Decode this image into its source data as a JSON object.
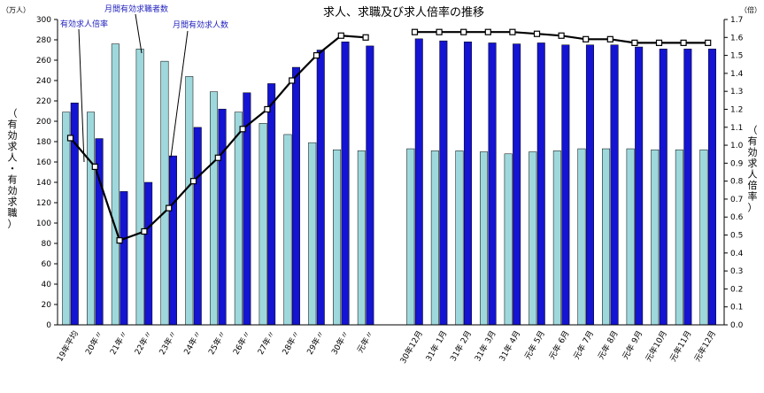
{
  "chart_data": {
    "type": "bar",
    "title": "求人、求職及び求人倍率の推移",
    "left_unit": "（万人）",
    "right_unit": "（倍）",
    "ylabel_left": "（有効求人・有効求職）",
    "ylabel_right": "（有効求人倍率）",
    "ylim_left": [
      0,
      300
    ],
    "ylim_right": [
      0.0,
      1.7
    ],
    "left_ticks": [
      "0",
      "20",
      "40",
      "60",
      "80",
      "100",
      "120",
      "140",
      "160",
      "180",
      "200",
      "220",
      "240",
      "260",
      "280",
      "300"
    ],
    "right_ticks": [
      "0.0",
      "0.1",
      "0.2",
      "0.3",
      "0.4",
      "0.5",
      "0.6",
      "0.7",
      "0.8",
      "0.9",
      "1.0",
      "1.1",
      "1.2",
      "1.3",
      "1.4",
      "1.5",
      "1.6",
      "1.7"
    ],
    "categories": [
      "19年平均",
      "20年〃",
      "21年〃",
      "22年〃",
      "23年〃",
      "24年〃",
      "25年〃",
      "26年〃",
      "27年〃",
      "28年〃",
      "29年〃",
      "30年〃",
      "元年〃",
      "30年12月",
      "31年 1月",
      "31年 2月",
      "31年 3月",
      "31年 4月",
      "元年 5月",
      "元年 6月",
      "元年 7月",
      "元年 8月",
      "元年 9月",
      "元年10月",
      "元年11月",
      "元年12月"
    ],
    "series": [
      {
        "name": "月間有効求職者数",
        "axis": "left",
        "color": "#9ed8dc",
        "values": [
          209,
          209,
          276,
          271,
          259,
          244,
          229,
          209,
          198,
          187,
          179,
          172,
          171,
          173,
          171,
          171,
          170,
          168,
          170,
          171,
          173,
          173,
          173,
          172,
          172,
          172
        ]
      },
      {
        "name": "月間有効求人数",
        "axis": "left",
        "color": "#1414d2",
        "values": [
          218,
          183,
          131,
          140,
          166,
          194,
          212,
          228,
          237,
          253,
          270,
          278,
          274,
          281,
          279,
          278,
          277,
          276,
          277,
          275,
          275,
          275,
          273,
          271,
          271,
          271
        ]
      },
      {
        "name": "有効求人倍率",
        "axis": "right",
        "type": "line",
        "color": "#000000",
        "values": [
          1.04,
          0.88,
          0.47,
          0.52,
          0.65,
          0.8,
          0.93,
          1.09,
          1.2,
          1.36,
          1.5,
          1.61,
          1.6,
          1.63,
          1.63,
          1.63,
          1.63,
          1.63,
          1.62,
          1.61,
          1.59,
          1.59,
          1.57,
          1.57,
          1.57,
          1.57
        ]
      }
    ],
    "annotations": [
      "有効求人倍率",
      "月間有効求職者数",
      "月間有効求人数"
    ],
    "legend": "annotations",
    "grid": false
  }
}
